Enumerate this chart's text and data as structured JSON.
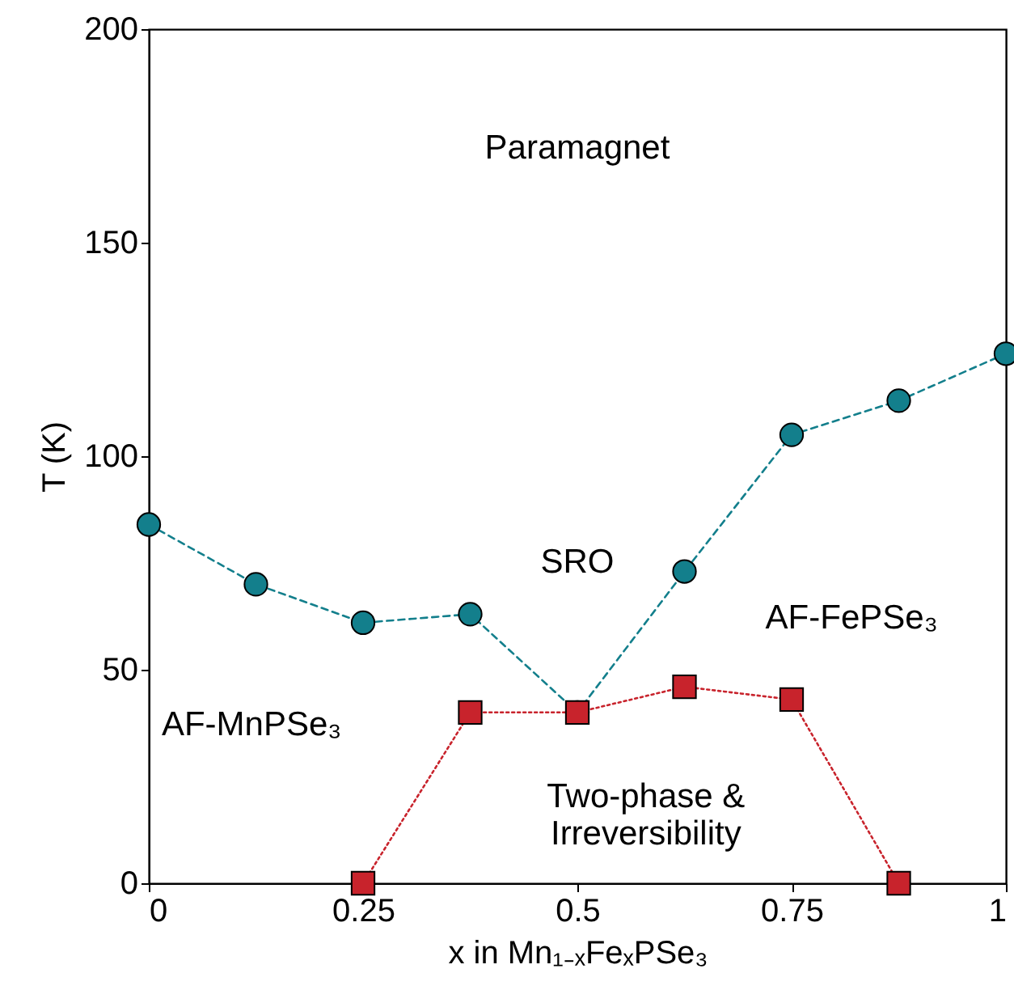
{
  "chart_data": {
    "type": "line",
    "xlabel": "x in Mn₁₋ₓFeₓPSe₃",
    "ylabel": "T (K)",
    "x": [
      0,
      0.125,
      0.25,
      0.375,
      0.5,
      0.625,
      0.75,
      0.875,
      1
    ],
    "series": [
      {
        "color": "#137f8c",
        "marker": "circle",
        "line_style": "dashed",
        "values": [
          84,
          70,
          61,
          63,
          40,
          73,
          105,
          113,
          124
        ]
      },
      {
        "color": "#c8232c",
        "marker": "square",
        "line_style": "dotted",
        "x": [
          0.25,
          0.375,
          0.5,
          0.625,
          0.75,
          0.875
        ],
        "values": [
          0,
          40,
          40,
          46,
          43,
          0
        ]
      }
    ],
    "xlim": [
      0,
      1
    ],
    "xticks": [
      0,
      0.25,
      0.5,
      0.75,
      1
    ],
    "ylim": [
      0,
      200
    ],
    "yticks": [
      0,
      50,
      100,
      150,
      200
    ],
    "annotations": [
      "Paramagnet",
      "SRO",
      "AF-FePSe₃",
      "AF-MnPSe₃",
      "Two-phase &\nIrreversibility"
    ]
  }
}
